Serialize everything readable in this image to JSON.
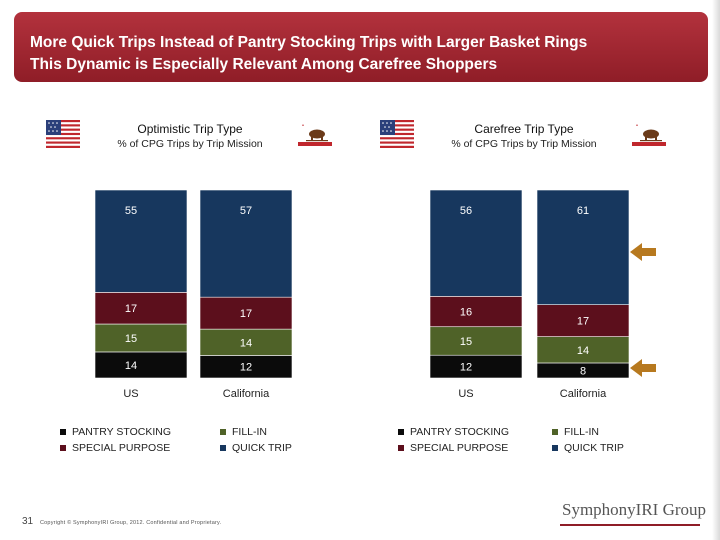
{
  "title": {
    "line1": "More Quick Trips Instead of Pantry Stocking Trips with Larger Basket Rings",
    "line2": "This Dynamic is Especially Relevant Among Carefree Shoppers"
  },
  "colors": {
    "quick_trip": "#17375e",
    "special_purpose": "#5c0f1c",
    "fill_in": "#4f6228",
    "pantry_stocking": "#0b0b0b",
    "arrow": "#b7791f",
    "header": "#a52a35"
  },
  "legend_items": [
    {
      "label": "PANTRY STOCKING",
      "color": "#0b0b0b"
    },
    {
      "label": "SPECIAL PURPOSE",
      "color": "#5c0f1c"
    },
    {
      "label": "FILL-IN",
      "color": "#4f6228"
    },
    {
      "label": "QUICK TRIP",
      "color": "#17375e"
    }
  ],
  "footer": {
    "page_number": "31",
    "copyright": "Copyright © SymphonyIRI Group, 2012. Confidential and Proprietary.",
    "brand": "SymphonyIRI Group"
  },
  "icons": [
    "us-flag-icon",
    "california-flag-icon",
    "arrow-left-icon"
  ],
  "chart_data": [
    {
      "type": "bar",
      "stacked": true,
      "title": "Optimistic Trip Type",
      "subtitle": "% of CPG Trips by Trip Mission",
      "categories": [
        "US",
        "California"
      ],
      "series": [
        {
          "name": "PANTRY STOCKING",
          "values": [
            14,
            12
          ]
        },
        {
          "name": "FILL-IN",
          "values": [
            15,
            14
          ]
        },
        {
          "name": "SPECIAL PURPOSE",
          "values": [
            17,
            17
          ]
        },
        {
          "name": "QUICK TRIP",
          "values": [
            55,
            57
          ]
        }
      ],
      "legend": "bottom",
      "ylim": [
        0,
        100
      ]
    },
    {
      "type": "bar",
      "stacked": true,
      "title": "Carefree Trip Type",
      "subtitle": "% of CPG Trips by Trip Mission",
      "categories": [
        "US",
        "California"
      ],
      "series": [
        {
          "name": "PANTRY STOCKING",
          "values": [
            12,
            8
          ]
        },
        {
          "name": "FILL-IN",
          "values": [
            15,
            14
          ]
        },
        {
          "name": "SPECIAL PURPOSE",
          "values": [
            16,
            17
          ]
        },
        {
          "name": "QUICK TRIP",
          "values": [
            56,
            61
          ]
        }
      ],
      "legend": "bottom",
      "ylim": [
        0,
        100
      ],
      "annotations": [
        "arrow pointing to California QUICK TRIP",
        "arrow pointing to California PANTRY STOCKING"
      ]
    }
  ]
}
